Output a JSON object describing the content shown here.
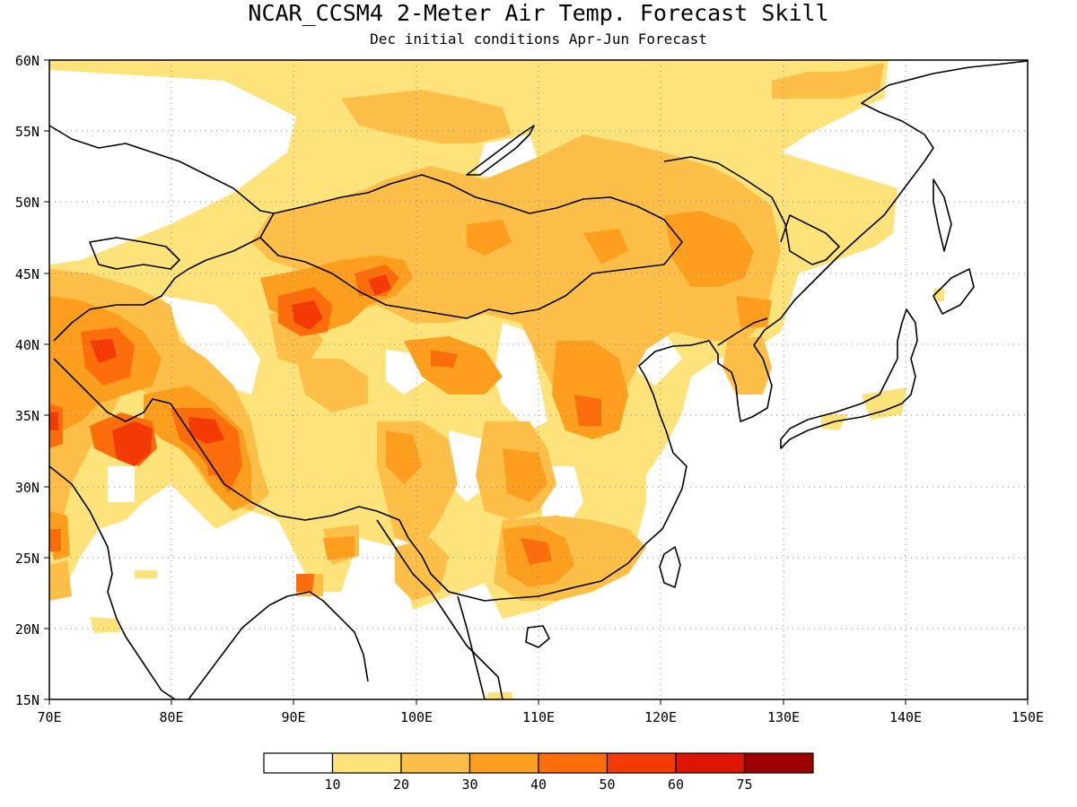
{
  "map": {
    "title": "NCAR_CCSM4 2-Meter Air Temp. Forecast Skill",
    "subtitle": "Dec initial conditions  Apr-Jun Forecast",
    "lon_labels": [
      "70E",
      "80E",
      "90E",
      "100E",
      "110E",
      "120E",
      "130E",
      "140E",
      "150E"
    ],
    "lat_labels": [
      "15N",
      "20N",
      "25N",
      "30N",
      "35N",
      "40N",
      "45N",
      "50N",
      "55N",
      "60N"
    ],
    "lon_range": [
      70,
      150
    ],
    "lat_range": [
      15,
      60
    ],
    "grid": "dotted at 10° longitude / 5° latitude"
  },
  "colorbar": {
    "labels": [
      "10",
      "20",
      "30",
      "40",
      "50",
      "60",
      "75"
    ],
    "colors": [
      "#ffffff",
      "#fee37a",
      "#fdbf47",
      "#fd9e1f",
      "#fc6e0c",
      "#f43a05",
      "#dc1505",
      "#9c0000"
    ]
  },
  "colors": {
    "level1": "#fee37a",
    "level2": "#fdbf47",
    "level3": "#fd9e1f",
    "level4": "#fc6e0c",
    "level5": "#f43a05",
    "outline": "#000000"
  }
}
